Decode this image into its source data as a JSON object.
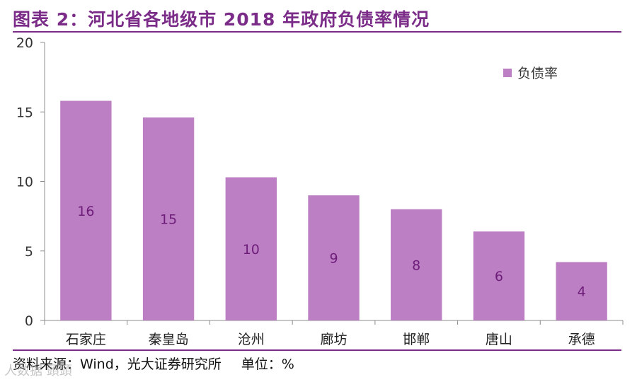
{
  "header": {
    "title": "图表 2：河北省各地级市 2018 年政府负债率情况"
  },
  "footer": {
    "source": "资料来源：Wind，光大证券研究所",
    "unit": "单位：%",
    "watermark": "人数据 頭頭"
  },
  "colors": {
    "bar": "#BC7FC3",
    "label": "#6E1D7A",
    "title": "#7B2C88",
    "axis": "#8C8C8C"
  },
  "chart_data": {
    "type": "bar",
    "title": "河北省各地级市 2018 年政府负债率情况",
    "categories": [
      "石家庄",
      "秦皇岛",
      "沧州",
      "廊坊",
      "邯郸",
      "唐山",
      "承德"
    ],
    "series": [
      {
        "name": "负债率",
        "values": [
          15.8,
          14.6,
          10.3,
          9.0,
          8.0,
          6.4,
          4.2
        ]
      }
    ],
    "data_labels": [
      "16",
      "15",
      "10",
      "9",
      "8",
      "6",
      "4"
    ],
    "ylim": [
      0,
      20
    ],
    "yticks": [
      0,
      5,
      10,
      15,
      20
    ],
    "xlabel": "",
    "ylabel": "",
    "legend": {
      "position": "top-right",
      "label": "负债率"
    },
    "grid": false
  }
}
